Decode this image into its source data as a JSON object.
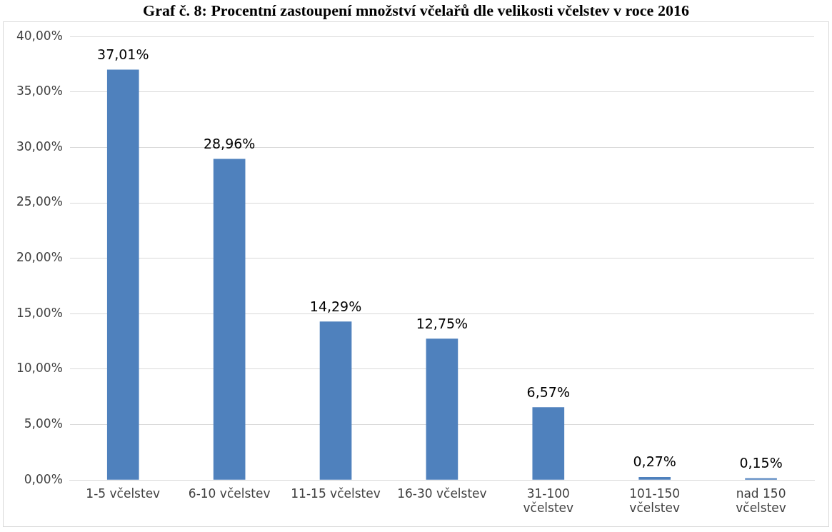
{
  "chart_data": {
    "type": "bar",
    "title": "Graf č. 8: Procentní zastoupení množství včelařů dle velikosti včelstev v roce 2016",
    "categories": [
      "1-5 včelstev",
      "6-10 včelstev",
      "11-15 včelstev",
      "16-30 včelstev",
      "31-100 včelstev",
      "101-150 včelstev",
      "nad 150 včelstev"
    ],
    "values": [
      37.01,
      28.96,
      14.29,
      12.75,
      6.57,
      0.27,
      0.15
    ],
    "value_labels": [
      "37,01%",
      "28,96%",
      "14,29%",
      "12,75%",
      "6,57%",
      "0,27%",
      "0,15%"
    ],
    "color": "#4f81bd",
    "ylim": [
      0,
      40
    ],
    "yticks": [
      {
        "value": 0,
        "label": "0,00%"
      },
      {
        "value": 5,
        "label": "5,00%"
      },
      {
        "value": 10,
        "label": "10,00%"
      },
      {
        "value": 15,
        "label": "15,00%"
      },
      {
        "value": 20,
        "label": "20,00%"
      },
      {
        "value": 25,
        "label": "25,00%"
      },
      {
        "value": 30,
        "label": "30,00%"
      },
      {
        "value": 35,
        "label": "35,00%"
      },
      {
        "value": 40,
        "label": "40,00%"
      }
    ],
    "grid": "y"
  }
}
